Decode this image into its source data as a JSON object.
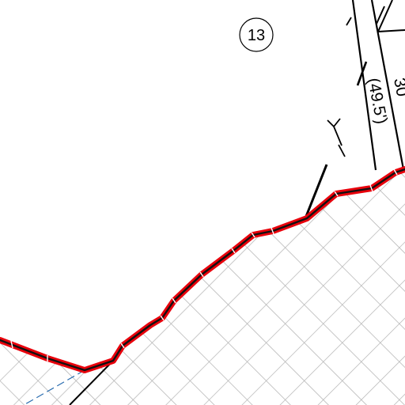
{
  "map": {
    "lot_number": "13",
    "dimension_label": "(49.5')",
    "dimension_label_partial": "30",
    "colors": {
      "background": "#ffffff",
      "boundary_outline": "#e8000b",
      "boundary_core": "#111111",
      "hatch": "#b3b3b3",
      "lines": "#000000",
      "dashed_line": "#2a6db0"
    },
    "hatch_pattern": "diagonal-crosshatch",
    "icons": [
      "triangle-marker-icon",
      "tick-mark-icon",
      "circle-label-icon"
    ]
  }
}
